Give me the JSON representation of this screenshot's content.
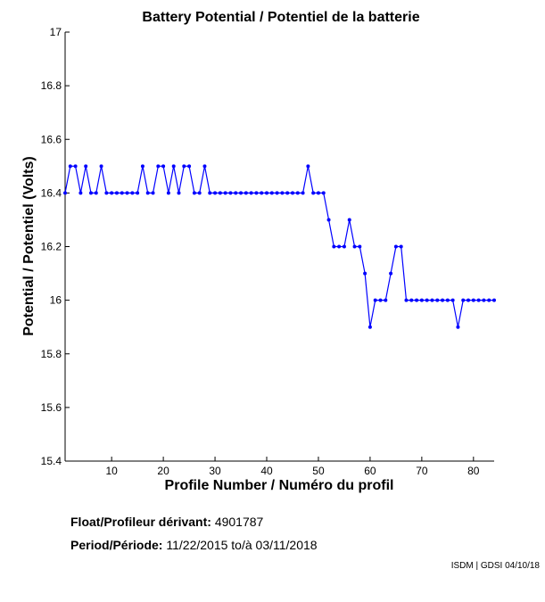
{
  "chart_data": {
    "type": "line",
    "title": "Battery Potential / Potentiel de la batterie",
    "xlabel": "Profile Number / Numéro du profil",
    "ylabel": "Potential / Potentiel (Volts)",
    "xlim": [
      1,
      84
    ],
    "ylim": [
      15.4,
      17
    ],
    "xticks": [
      10,
      20,
      30,
      40,
      50,
      60,
      70,
      80
    ],
    "yticks": [
      15.4,
      15.6,
      15.8,
      16,
      16.2,
      16.4,
      16.6,
      16.8,
      17
    ],
    "ytick_labels": [
      "15.4",
      "15.6",
      "15.8",
      "16",
      "16.2",
      "16.4",
      "16.6",
      "16.8",
      "17"
    ],
    "grid": false,
    "series": [
      {
        "color": "#0000ff",
        "x": [
          1,
          2,
          3,
          4,
          5,
          6,
          7,
          8,
          9,
          10,
          11,
          12,
          13,
          14,
          15,
          16,
          17,
          18,
          19,
          20,
          21,
          22,
          23,
          24,
          25,
          26,
          27,
          28,
          29,
          30,
          31,
          32,
          33,
          34,
          35,
          36,
          37,
          38,
          39,
          40,
          41,
          42,
          43,
          44,
          45,
          46,
          47,
          48,
          49,
          50,
          51,
          52,
          53,
          54,
          55,
          56,
          57,
          58,
          59,
          60,
          61,
          62,
          63,
          64,
          65,
          66,
          67,
          68,
          69,
          70,
          71,
          72,
          73,
          74,
          75,
          76,
          77,
          78,
          79,
          80,
          81,
          82,
          83,
          84
        ],
        "y": [
          16.4,
          16.5,
          16.5,
          16.4,
          16.5,
          16.4,
          16.4,
          16.5,
          16.4,
          16.4,
          16.4,
          16.4,
          16.4,
          16.4,
          16.4,
          16.5,
          16.4,
          16.4,
          16.5,
          16.5,
          16.4,
          16.5,
          16.4,
          16.5,
          16.5,
          16.4,
          16.4,
          16.5,
          16.4,
          16.4,
          16.4,
          16.4,
          16.4,
          16.4,
          16.4,
          16.4,
          16.4,
          16.4,
          16.4,
          16.4,
          16.4,
          16.4,
          16.4,
          16.4,
          16.4,
          16.4,
          16.4,
          16.5,
          16.4,
          16.4,
          16.4,
          16.3,
          16.2,
          16.2,
          16.2,
          16.3,
          16.2,
          16.2,
          16.1,
          15.9,
          16,
          16,
          16,
          16.1,
          16.2,
          16.2,
          16,
          16,
          16,
          16,
          16,
          16,
          16,
          16,
          16,
          16,
          15.9,
          16,
          16,
          16,
          16,
          16,
          16,
          16
        ]
      }
    ]
  },
  "info": {
    "float_label": "Float/Profileur dérivant:",
    "float_value": "4901787",
    "period_label": "Period/Période:",
    "period_start": "11/22/2015",
    "period_sep": "to/à",
    "period_end": "03/11/2018",
    "credit": "ISDM | GDSI 04/10/18"
  }
}
